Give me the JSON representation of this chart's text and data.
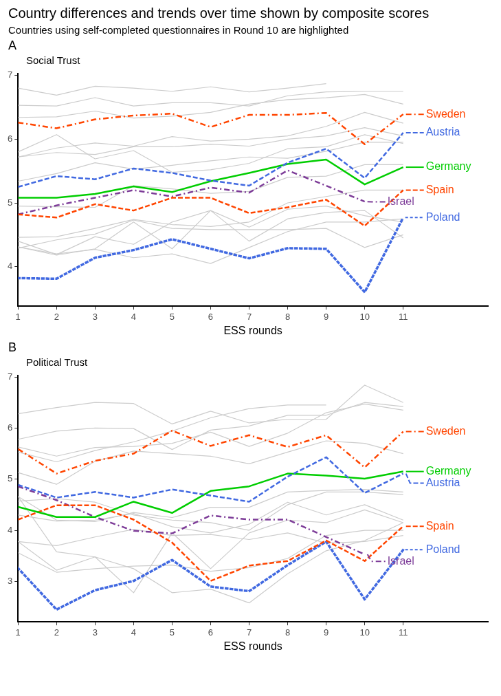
{
  "chart_data": [
    {
      "type": "line",
      "title": "Country differences and trends over time shown by composite scores",
      "subtitle": "Countries using self-completed questionnaires in Round 10 are highlighted",
      "annotations": [
        "A",
        "Social Trust"
      ],
      "xlabel": "ESS rounds",
      "x": [
        1,
        2,
        3,
        4,
        5,
        6,
        7,
        8,
        9,
        10,
        11
      ],
      "xlim": [
        1,
        13.2
      ],
      "xticks": [
        1,
        2,
        3,
        4,
        5,
        6,
        7,
        8,
        9,
        10,
        11
      ],
      "ylim": [
        3.38,
        7.03
      ],
      "yticks": [
        4,
        5,
        6,
        7
      ],
      "grid": false,
      "legend": "right",
      "marker": "none",
      "series": [
        {
          "color": "#cccccc",
          "line_style": "solid",
          "values": [
            6.8,
            6.69,
            6.83,
            6.8,
            6.75,
            6.82,
            6.74,
            6.8,
            6.87,
            null,
            null
          ]
        },
        {
          "color": "#cccccc",
          "line_style": "solid",
          "values": [
            6.53,
            6.52,
            6.65,
            6.52,
            6.57,
            6.57,
            6.52,
            6.68,
            6.74,
            6.75,
            6.75
          ]
        },
        {
          "color": "#cccccc",
          "line_style": "solid",
          "values": [
            6.34,
            6.35,
            6.44,
            6.33,
            6.36,
            6.42,
            6.55,
            6.62,
            6.65,
            6.7,
            6.55
          ]
        },
        {
          "color": "#cccccc",
          "line_style": "solid",
          "values": [
            5.8,
            6.07,
            5.69,
            5.82,
            5.48,
            5.52,
            5.62,
            5.85,
            5.88,
            6.07,
            5.93
          ]
        },
        {
          "color": "#cccccc",
          "line_style": "solid",
          "values": [
            5.72,
            5.86,
            5.94,
            5.89,
            6.04,
            5.97,
            6.0,
            6.05,
            6.2,
            6.42,
            6.25
          ]
        },
        {
          "color": "#cccccc",
          "line_style": "solid",
          "values": [
            5.72,
            5.79,
            5.76,
            5.88,
            5.88,
            5.92,
            5.89,
            6.0,
            6.05,
            6.18,
            6.05
          ]
        },
        {
          "color": "#cccccc",
          "line_style": "solid",
          "values": [
            5.34,
            5.46,
            5.63,
            5.53,
            5.59,
            5.66,
            5.72,
            5.7,
            5.81,
            5.95,
            5.95
          ]
        },
        {
          "color": "#cccccc",
          "line_style": "solid",
          "values": [
            4.95,
            4.94,
            4.93,
            5.27,
            5.22,
            5.15,
            5.18,
            5.4,
            5.42,
            5.6,
            5.6
          ]
        },
        {
          "color": "#cccccc",
          "line_style": "solid",
          "values": [
            4.46,
            4.47,
            4.6,
            4.74,
            4.66,
            4.63,
            4.7,
            5.0,
            5.1,
            5.2,
            5.2
          ]
        },
        {
          "color": "#cccccc",
          "line_style": "solid",
          "values": [
            4.4,
            4.19,
            4.47,
            4.35,
            4.7,
            4.88,
            4.4,
            4.75,
            4.85,
            4.88,
            4.45
          ]
        },
        {
          "color": "#cccccc",
          "line_style": "solid",
          "values": [
            4.31,
            4.18,
            4.28,
            4.7,
            4.28,
            4.88,
            4.62,
            4.9,
            4.95,
            4.8,
            4.7
          ]
        },
        {
          "color": "#cccccc",
          "line_style": "solid",
          "values": [
            4.29,
            4.42,
            4.51,
            4.73,
            4.6,
            4.58,
            4.58,
            4.58,
            4.6,
            4.3,
            4.5
          ]
        },
        {
          "color": "#cccccc",
          "line_style": "solid",
          "values": [
            4.31,
            4.2,
            4.27,
            4.14,
            4.2,
            4.05,
            4.3,
            4.55,
            4.7,
            4.7,
            4.75
          ]
        },
        {
          "name": "Sweden",
          "color": "#ff4500",
          "line_style": "dashdot",
          "values": [
            6.26,
            6.17,
            6.31,
            6.37,
            6.4,
            6.19,
            6.38,
            6.38,
            6.41,
            5.92,
            6.39
          ]
        },
        {
          "name": "Austria",
          "color": "#4169e1",
          "line_style": "dashed",
          "values": [
            5.25,
            5.42,
            5.37,
            5.54,
            5.47,
            5.35,
            5.27,
            5.63,
            5.85,
            5.39,
            6.1
          ]
        },
        {
          "name": "Germany",
          "color": "#00cd00",
          "line_style": "solid",
          "values": [
            5.08,
            5.08,
            5.14,
            5.26,
            5.17,
            5.34,
            5.47,
            5.61,
            5.68,
            5.29,
            5.56
          ]
        },
        {
          "name": "Spain",
          "color": "#ff4500",
          "line_style": "dashed",
          "values": [
            4.82,
            4.77,
            4.98,
            4.88,
            5.08,
            5.08,
            4.84,
            4.93,
            5.05,
            4.64,
            5.2
          ]
        },
        {
          "name": "Israel",
          "color": "#7d3c98",
          "line_style": "dashdot",
          "values": [
            4.82,
            4.96,
            5.08,
            5.2,
            5.1,
            5.24,
            5.16,
            5.51,
            5.27,
            5.02,
            null
          ]
        },
        {
          "name": "Poland",
          "color": "#4169e1",
          "line_style": "dotted",
          "values": [
            3.82,
            3.81,
            4.14,
            4.26,
            4.43,
            4.28,
            4.13,
            4.29,
            4.28,
            3.6,
            4.77
          ]
        }
      ]
    },
    {
      "type": "line",
      "annotations": [
        "B",
        "Political Trust"
      ],
      "xlabel": "ESS rounds",
      "x": [
        1,
        2,
        3,
        4,
        5,
        6,
        7,
        8,
        9,
        10,
        11
      ],
      "xlim": [
        1,
        13.2
      ],
      "xticks": [
        1,
        2,
        3,
        4,
        5,
        6,
        7,
        8,
        9,
        10,
        11
      ],
      "ylim": [
        2.21,
        7.03
      ],
      "yticks": [
        3,
        4,
        5,
        6,
        7
      ],
      "grid": false,
      "legend": "right",
      "marker": "none",
      "series": [
        {
          "color": "#cccccc",
          "line_style": "solid",
          "values": [
            6.28,
            6.4,
            6.5,
            6.48,
            6.08,
            6.33,
            6.1,
            6.17,
            6.17,
            6.84,
            6.5
          ]
        },
        {
          "color": "#cccccc",
          "line_style": "solid",
          "values": [
            5.78,
            5.94,
            6.0,
            5.99,
            5.58,
            5.96,
            6.04,
            6.25,
            6.25,
            6.5,
            6.42
          ]
        },
        {
          "color": "#cccccc",
          "line_style": "solid",
          "values": [
            5.63,
            5.45,
            5.62,
            5.64,
            5.7,
            5.92,
            5.64,
            5.9,
            6.3,
            6.47,
            6.35
          ]
        },
        {
          "color": "#cccccc",
          "line_style": "solid",
          "values": [
            5.53,
            5.34,
            5.56,
            5.73,
            5.94,
            6.2,
            6.38,
            6.45,
            6.45,
            null,
            null
          ]
        },
        {
          "color": "#cccccc",
          "line_style": "solid",
          "values": [
            5.13,
            4.9,
            5.35,
            5.55,
            5.5,
            5.45,
            5.3,
            5.53,
            5.75,
            5.7,
            5.5
          ]
        },
        {
          "color": "#cccccc",
          "line_style": "solid",
          "values": [
            4.66,
            4.2,
            4.17,
            4.35,
            4.25,
            4.45,
            4.45,
            4.75,
            4.78,
            4.8,
            4.75
          ]
        },
        {
          "color": "#cccccc",
          "line_style": "solid",
          "values": [
            4.57,
            4.62,
            4.55,
            4.3,
            4.2,
            4.15,
            4.0,
            4.5,
            4.75,
            4.75,
            4.7
          ]
        },
        {
          "color": "#cccccc",
          "line_style": "solid",
          "values": [
            4.3,
            4.18,
            4.2,
            4.33,
            4.07,
            3.95,
            4.12,
            4.55,
            4.3,
            4.5,
            4.2
          ]
        },
        {
          "color": "#cccccc",
          "line_style": "solid",
          "values": [
            3.78,
            3.7,
            3.87,
            4.02,
            3.9,
            3.92,
            3.82,
            3.95,
            3.75,
            3.78,
            3.9
          ]
        },
        {
          "color": "#cccccc",
          "line_style": "solid",
          "values": [
            4.66,
            3.58,
            3.48,
            2.78,
            3.95,
            3.25,
            3.95,
            4.2,
            4.15,
            4.4,
            4.15
          ]
        },
        {
          "color": "#cccccc",
          "line_style": "solid",
          "values": [
            3.56,
            3.18,
            3.25,
            3.3,
            3.32,
            3.2,
            3.27,
            3.45,
            3.9,
            4.0,
            4.0
          ]
        },
        {
          "color": "#cccccc",
          "line_style": "solid",
          "values": [
            3.78,
            3.22,
            3.48,
            3.25,
            2.78,
            2.85,
            2.58,
            3.15,
            3.6,
            3.8,
            4.15
          ]
        },
        {
          "name": "Sweden",
          "color": "#ff4500",
          "line_style": "dashdot",
          "values": [
            5.59,
            5.11,
            5.36,
            5.5,
            5.95,
            5.65,
            5.86,
            5.63,
            5.86,
            5.23,
            5.93
          ]
        },
        {
          "name": "Austria",
          "color": "#4169e1",
          "line_style": "dashed",
          "values": [
            4.89,
            4.64,
            4.75,
            4.64,
            4.8,
            4.68,
            4.56,
            5.05,
            5.43,
            4.73,
            5.11
          ]
        },
        {
          "name": "Germany",
          "color": "#00cd00",
          "line_style": "solid",
          "values": [
            4.46,
            4.26,
            4.26,
            4.56,
            4.34,
            4.77,
            4.86,
            5.11,
            5.07,
            5.01,
            5.15
          ]
        },
        {
          "name": "Spain",
          "color": "#ff4500",
          "line_style": "dashed",
          "values": [
            4.21,
            4.49,
            4.49,
            4.21,
            3.76,
            3.01,
            3.31,
            3.4,
            3.8,
            3.4,
            4.08
          ]
        },
        {
          "name": "Israel",
          "color": "#7d3c98",
          "line_style": "dashdot",
          "values": [
            4.86,
            4.59,
            4.26,
            3.99,
            3.94,
            4.29,
            4.21,
            4.21,
            3.87,
            3.53,
            null
          ]
        },
        {
          "name": "Poland",
          "color": "#4169e1",
          "line_style": "dotted",
          "values": [
            3.26,
            2.45,
            2.83,
            3.01,
            3.42,
            2.9,
            2.81,
            3.32,
            3.78,
            2.65,
            3.62
          ]
        }
      ]
    }
  ]
}
